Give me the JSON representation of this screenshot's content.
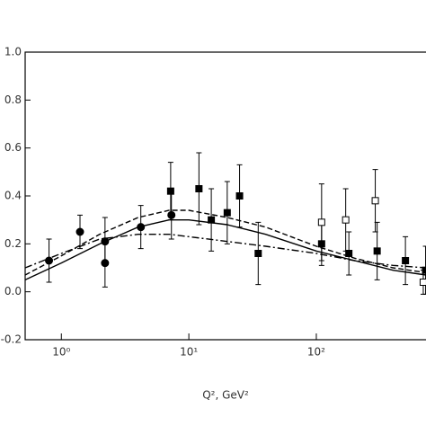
{
  "chart_data": {
    "type": "scatter",
    "xlabel": "Q², GeV²",
    "xscale": "log",
    "xlim": [
      0.52,
      725
    ],
    "ylim": [
      -0.2,
      1.0
    ],
    "xticks": [
      {
        "value": 1,
        "label": "10⁰"
      },
      {
        "value": 10,
        "label": "10¹"
      },
      {
        "value": 100,
        "label": "10²"
      }
    ],
    "yticks": [
      {
        "value": -0.2,
        "label": "-0.2"
      },
      {
        "value": 0.0,
        "label": "0.0"
      },
      0.2,
      0.4,
      0.6,
      0.8,
      {
        "value": 1.0,
        "label": "1.0"
      }
    ],
    "series": [
      {
        "type": "scatter",
        "marker": "circle",
        "filled": true,
        "color": "#000000",
        "x": [
          0.8,
          1.4,
          2.2,
          2.2,
          4.2,
          7.3
        ],
        "values": [
          0.13,
          0.25,
          0.21,
          0.12,
          0.27,
          0.32
        ],
        "errors": [
          0.09,
          0.07,
          0.1,
          0.1,
          0.09,
          0.1
        ]
      },
      {
        "type": "scatter",
        "marker": "square",
        "filled": true,
        "color": "#000000",
        "x": [
          7.2,
          12,
          15,
          20,
          25,
          35,
          110,
          180,
          300,
          500,
          720
        ],
        "values": [
          0.42,
          0.43,
          0.3,
          0.33,
          0.4,
          0.16,
          0.2,
          0.16,
          0.17,
          0.13,
          0.09
        ],
        "errors": [
          0.12,
          0.15,
          0.13,
          0.13,
          0.13,
          0.13,
          0.09,
          0.09,
          0.12,
          0.1,
          0.1
        ]
      },
      {
        "type": "scatter",
        "marker": "square",
        "filled": false,
        "color": "#000000",
        "x": [
          110,
          170,
          290,
          690
        ],
        "values": [
          0.29,
          0.3,
          0.38,
          0.04
        ],
        "errors": [
          0.16,
          0.13,
          0.13,
          0.05
        ]
      },
      {
        "type": "line",
        "style": "solid",
        "color": "#000000",
        "x": [
          0.52,
          1,
          2,
          4,
          7,
          10,
          20,
          40,
          100,
          200,
          400,
          725
        ],
        "values": [
          0.05,
          0.12,
          0.2,
          0.27,
          0.3,
          0.3,
          0.28,
          0.24,
          0.17,
          0.13,
          0.09,
          0.07
        ]
      },
      {
        "type": "line",
        "style": "dashed",
        "color": "#000000",
        "x": [
          0.52,
          1,
          2,
          4,
          7,
          10,
          20,
          40,
          100,
          200,
          400,
          725
        ],
        "values": [
          0.07,
          0.15,
          0.24,
          0.31,
          0.34,
          0.34,
          0.31,
          0.27,
          0.19,
          0.14,
          0.1,
          0.08
        ]
      },
      {
        "type": "line",
        "style": "dashdot",
        "color": "#000000",
        "x": [
          0.52,
          1,
          2,
          4,
          7,
          10,
          20,
          40,
          100,
          200,
          400,
          725
        ],
        "values": [
          0.1,
          0.16,
          0.22,
          0.24,
          0.24,
          0.23,
          0.21,
          0.19,
          0.16,
          0.13,
          0.11,
          0.1
        ]
      }
    ]
  }
}
